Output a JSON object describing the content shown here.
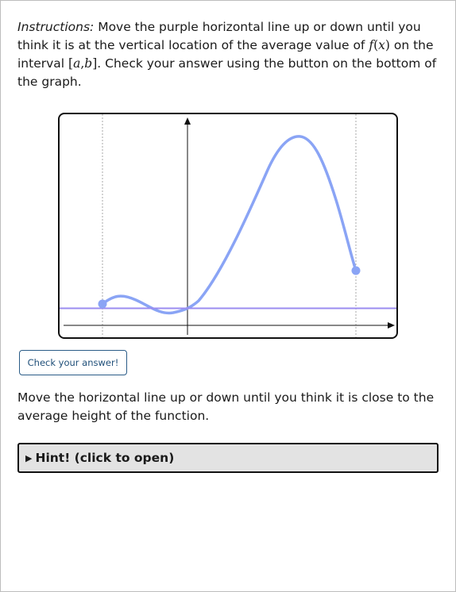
{
  "instructions": {
    "lead": "Instructions:",
    "part1": " Move the purple horizontal line up or down until you think it is at the vertical location of the average value of ",
    "math_f": "f",
    "math_open": "(",
    "math_x": "x",
    "math_close": ")",
    "part2": " on the interval ",
    "interval_open": "[",
    "interval_a": "a",
    "interval_comma": ",",
    "interval_b": "b",
    "interval_close": "]",
    "part3": ". Check your answer using the button on the bottom of the graph."
  },
  "graph": {
    "colors": {
      "curve": "#8aa4f5",
      "avg_line": "#9b8cf0",
      "axis": "#111111",
      "bound_line": "#aaaaaa"
    },
    "avg_line_level": 0.41
  },
  "check_button": {
    "label": "Check your answer!"
  },
  "tip": {
    "text": "Move the horizontal line up or down until you think it is close to the average height of the function."
  },
  "hint": {
    "icon": "triangle-right-icon",
    "label": "Hint! (click to open)"
  }
}
